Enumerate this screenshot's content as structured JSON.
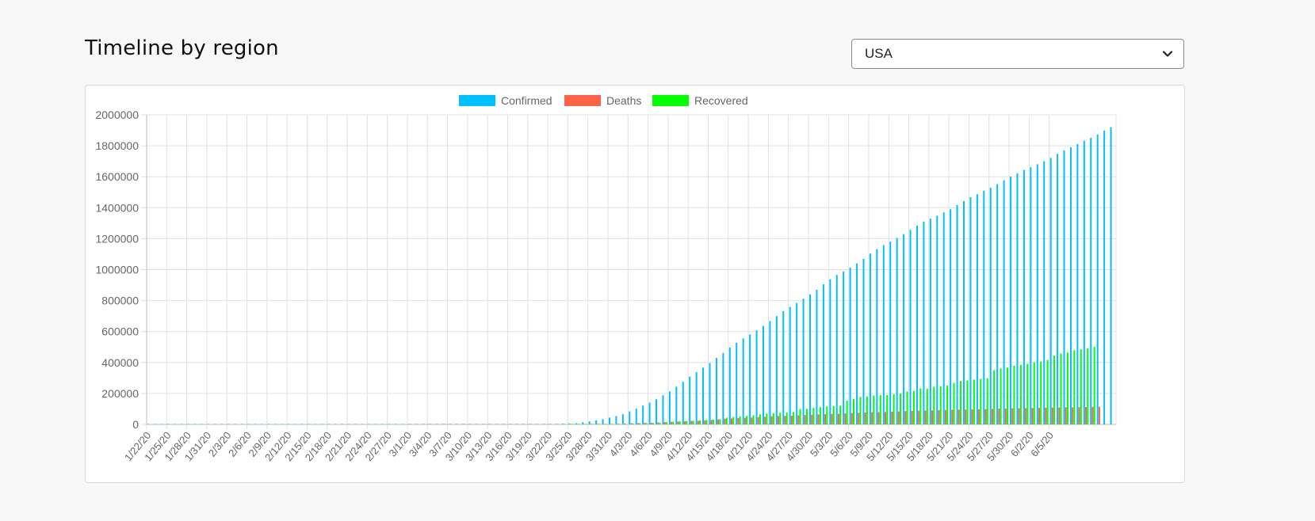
{
  "header": {
    "title": "Timeline by region"
  },
  "region_select": {
    "selected": "USA"
  },
  "colors": {
    "confirmed": "#00bfff",
    "deaths": "#ff6347",
    "recovered": "#00ff00",
    "grid": "#e0e0e0",
    "axis_text": "#666666"
  },
  "chart_data": {
    "type": "bar",
    "x_labels_shown": [
      "1/22/20",
      "1/25/20",
      "1/28/20",
      "1/31/20",
      "2/3/20",
      "2/6/20",
      "2/9/20",
      "2/12/20",
      "2/15/20",
      "2/18/20",
      "2/21/20",
      "2/24/20",
      "2/27/20",
      "3/1/20",
      "3/4/20",
      "3/7/20",
      "3/10/20",
      "3/13/20",
      "3/16/20",
      "3/19/20",
      "3/22/20",
      "3/25/20",
      "3/28/20",
      "3/31/20",
      "4/3/20",
      "4/6/20",
      "4/9/20",
      "4/12/20",
      "4/15/20",
      "4/18/20",
      "4/21/20",
      "4/24/20",
      "4/27/20",
      "4/30/20",
      "5/3/20",
      "5/6/20",
      "5/9/20",
      "5/12/20",
      "5/15/20",
      "5/18/20",
      "5/21/20",
      "5/24/20",
      "5/27/20",
      "5/30/20",
      "6/2/20",
      "6/5/20"
    ],
    "x_start": "1/22/20",
    "x_end": "6/6/20",
    "ylim": [
      0,
      2000000
    ],
    "y_ticks": [
      0,
      200000,
      400000,
      600000,
      800000,
      1000000,
      1200000,
      1400000,
      1600000,
      1800000,
      2000000
    ],
    "grid": true,
    "legend_position": "top-center",
    "series": [
      {
        "name": "Confirmed",
        "color": "#00bfff",
        "values": [
          1,
          1,
          2,
          2,
          5,
          5,
          5,
          5,
          5,
          6,
          7,
          8,
          11,
          11,
          11,
          12,
          12,
          12,
          12,
          12,
          13,
          13,
          14,
          14,
          14,
          14,
          14,
          14,
          14,
          15,
          15,
          15,
          15,
          15,
          15,
          15,
          16,
          16,
          35,
          35,
          35,
          53,
          53,
          59,
          60,
          62,
          70,
          76,
          101,
          122,
          153,
          221,
          278,
          417,
          537,
          605,
          959,
          1281,
          1663,
          2179,
          2726,
          3499,
          4632,
          6421,
          7783,
          13747,
          19273,
          25600,
          33276,
          43847,
          53740,
          65778,
          83836,
          101657,
          121465,
          140909,
          161831,
          188172,
          213242,
          243622,
          275586,
          308850,
          337072,
          366667,
          396223,
          429052,
          461437,
          496535,
          526396,
          555313,
          580619,
          607670,
          636350,
          667592,
          699706,
          732197,
          758809,
          784326,
          811865,
          840351,
          869170,
          905358,
          938154,
          965785,
          988197,
          1012582,
          1039909,
          1069424,
          1103461,
          1132539,
          1158040,
          1180375,
          1204351,
          1229331,
          1257023,
          1283929,
          1309550,
          1329260,
          1347881,
          1369376,
          1390406,
          1417774,
          1442824,
          1467820,
          1486757,
          1508308,
          1528568,
          1551853,
          1577147,
          1600937,
          1622612,
          1643246,
          1662302,
          1680913,
          1699933,
          1721750,
          1747781,
          1770165,
          1790191,
          1811020,
          1831821,
          1851520,
          1872660,
          1897380,
          1920061
        ]
      },
      {
        "name": "Deaths",
        "color": "#ff6347",
        "values": [
          0,
          0,
          0,
          0,
          0,
          0,
          0,
          0,
          0,
          0,
          0,
          0,
          0,
          0,
          0,
          0,
          0,
          0,
          0,
          0,
          0,
          0,
          0,
          0,
          0,
          0,
          0,
          0,
          0,
          0,
          0,
          0,
          0,
          0,
          0,
          0,
          0,
          0,
          0,
          1,
          6,
          7,
          11,
          12,
          14,
          17,
          21,
          22,
          28,
          36,
          40,
          47,
          54,
          63,
          85,
          108,
          118,
          200,
          244,
          307,
          427,
          557,
          706,
          942,
          1209,
          1581,
          2026,
          2467,
          2978,
          3873,
          4757,
          5926,
          7087,
          8407,
          9619,
          10783,
          12722,
          14695,
          16478,
          18586,
          20463,
          22020,
          23529,
          25832,
          28325,
          32916,
          36773,
          38664,
          40661,
          42094,
          44444,
          46622,
          49954,
          51949,
          53755,
          54881,
          56219,
          58355,
          60967,
          62996,
          64943,
          66369,
          67682,
          68922,
          71064,
          73455,
          75662,
          77180,
          78795,
          79526,
          80682,
          82356,
          84119,
          85898,
          87530,
          88754,
          89562,
          90347,
          91921,
          93439,
          94702,
          95979,
          96677,
          97087,
          97720,
          98913,
          100418,
          101617,
          102836,
          103781,
          104383,
          105147,
          106181,
          107175,
          108211,
          109042,
          109802,
          110514,
          111007,
          111620,
          112469,
          113434,
          114201
        ]
      },
      {
        "name": "Recovered",
        "color": "#00ff00",
        "values": [
          0,
          0,
          0,
          0,
          0,
          0,
          0,
          0,
          0,
          0,
          0,
          0,
          0,
          0,
          0,
          0,
          0,
          0,
          0,
          0,
          0,
          0,
          0,
          0,
          0,
          0,
          0,
          0,
          0,
          0,
          0,
          0,
          0,
          0,
          0,
          0,
          0,
          0,
          0,
          0,
          0,
          0,
          0,
          0,
          0,
          0,
          0,
          0,
          0,
          0,
          0,
          0,
          0,
          0,
          0,
          0,
          0,
          0,
          0,
          0,
          0,
          0,
          0,
          176,
          178,
          178,
          348,
          361,
          681,
          869,
          1072,
          2665,
          5644,
          7024,
          8474,
          9001,
          9707,
          14652,
          17448,
          19581,
          21763,
          23559,
          25410,
          28790,
          31270,
          32988,
          43482,
          47763,
          52096,
          54703,
          58545,
          64840,
          70337,
          72329,
          75204,
          77366,
          80203,
          99079,
          100372,
          106988,
          111424,
          115936,
          118781,
          120720,
          153947,
          164015,
          178263,
          180152,
          187180,
          189791,
          189910,
          195036,
          198993,
          212534,
          216169,
          232733,
          230287,
          243430,
          246414,
          250747,
          268376,
          280509,
          283178,
          289392,
          294312,
          298418,
          350135,
          361239,
          366736,
          379157,
          384902,
          391508,
          399991,
          406446,
          416461,
          444758,
          458231,
          463868,
          479258,
          485002,
          491706,
          500849
        ]
      }
    ]
  }
}
